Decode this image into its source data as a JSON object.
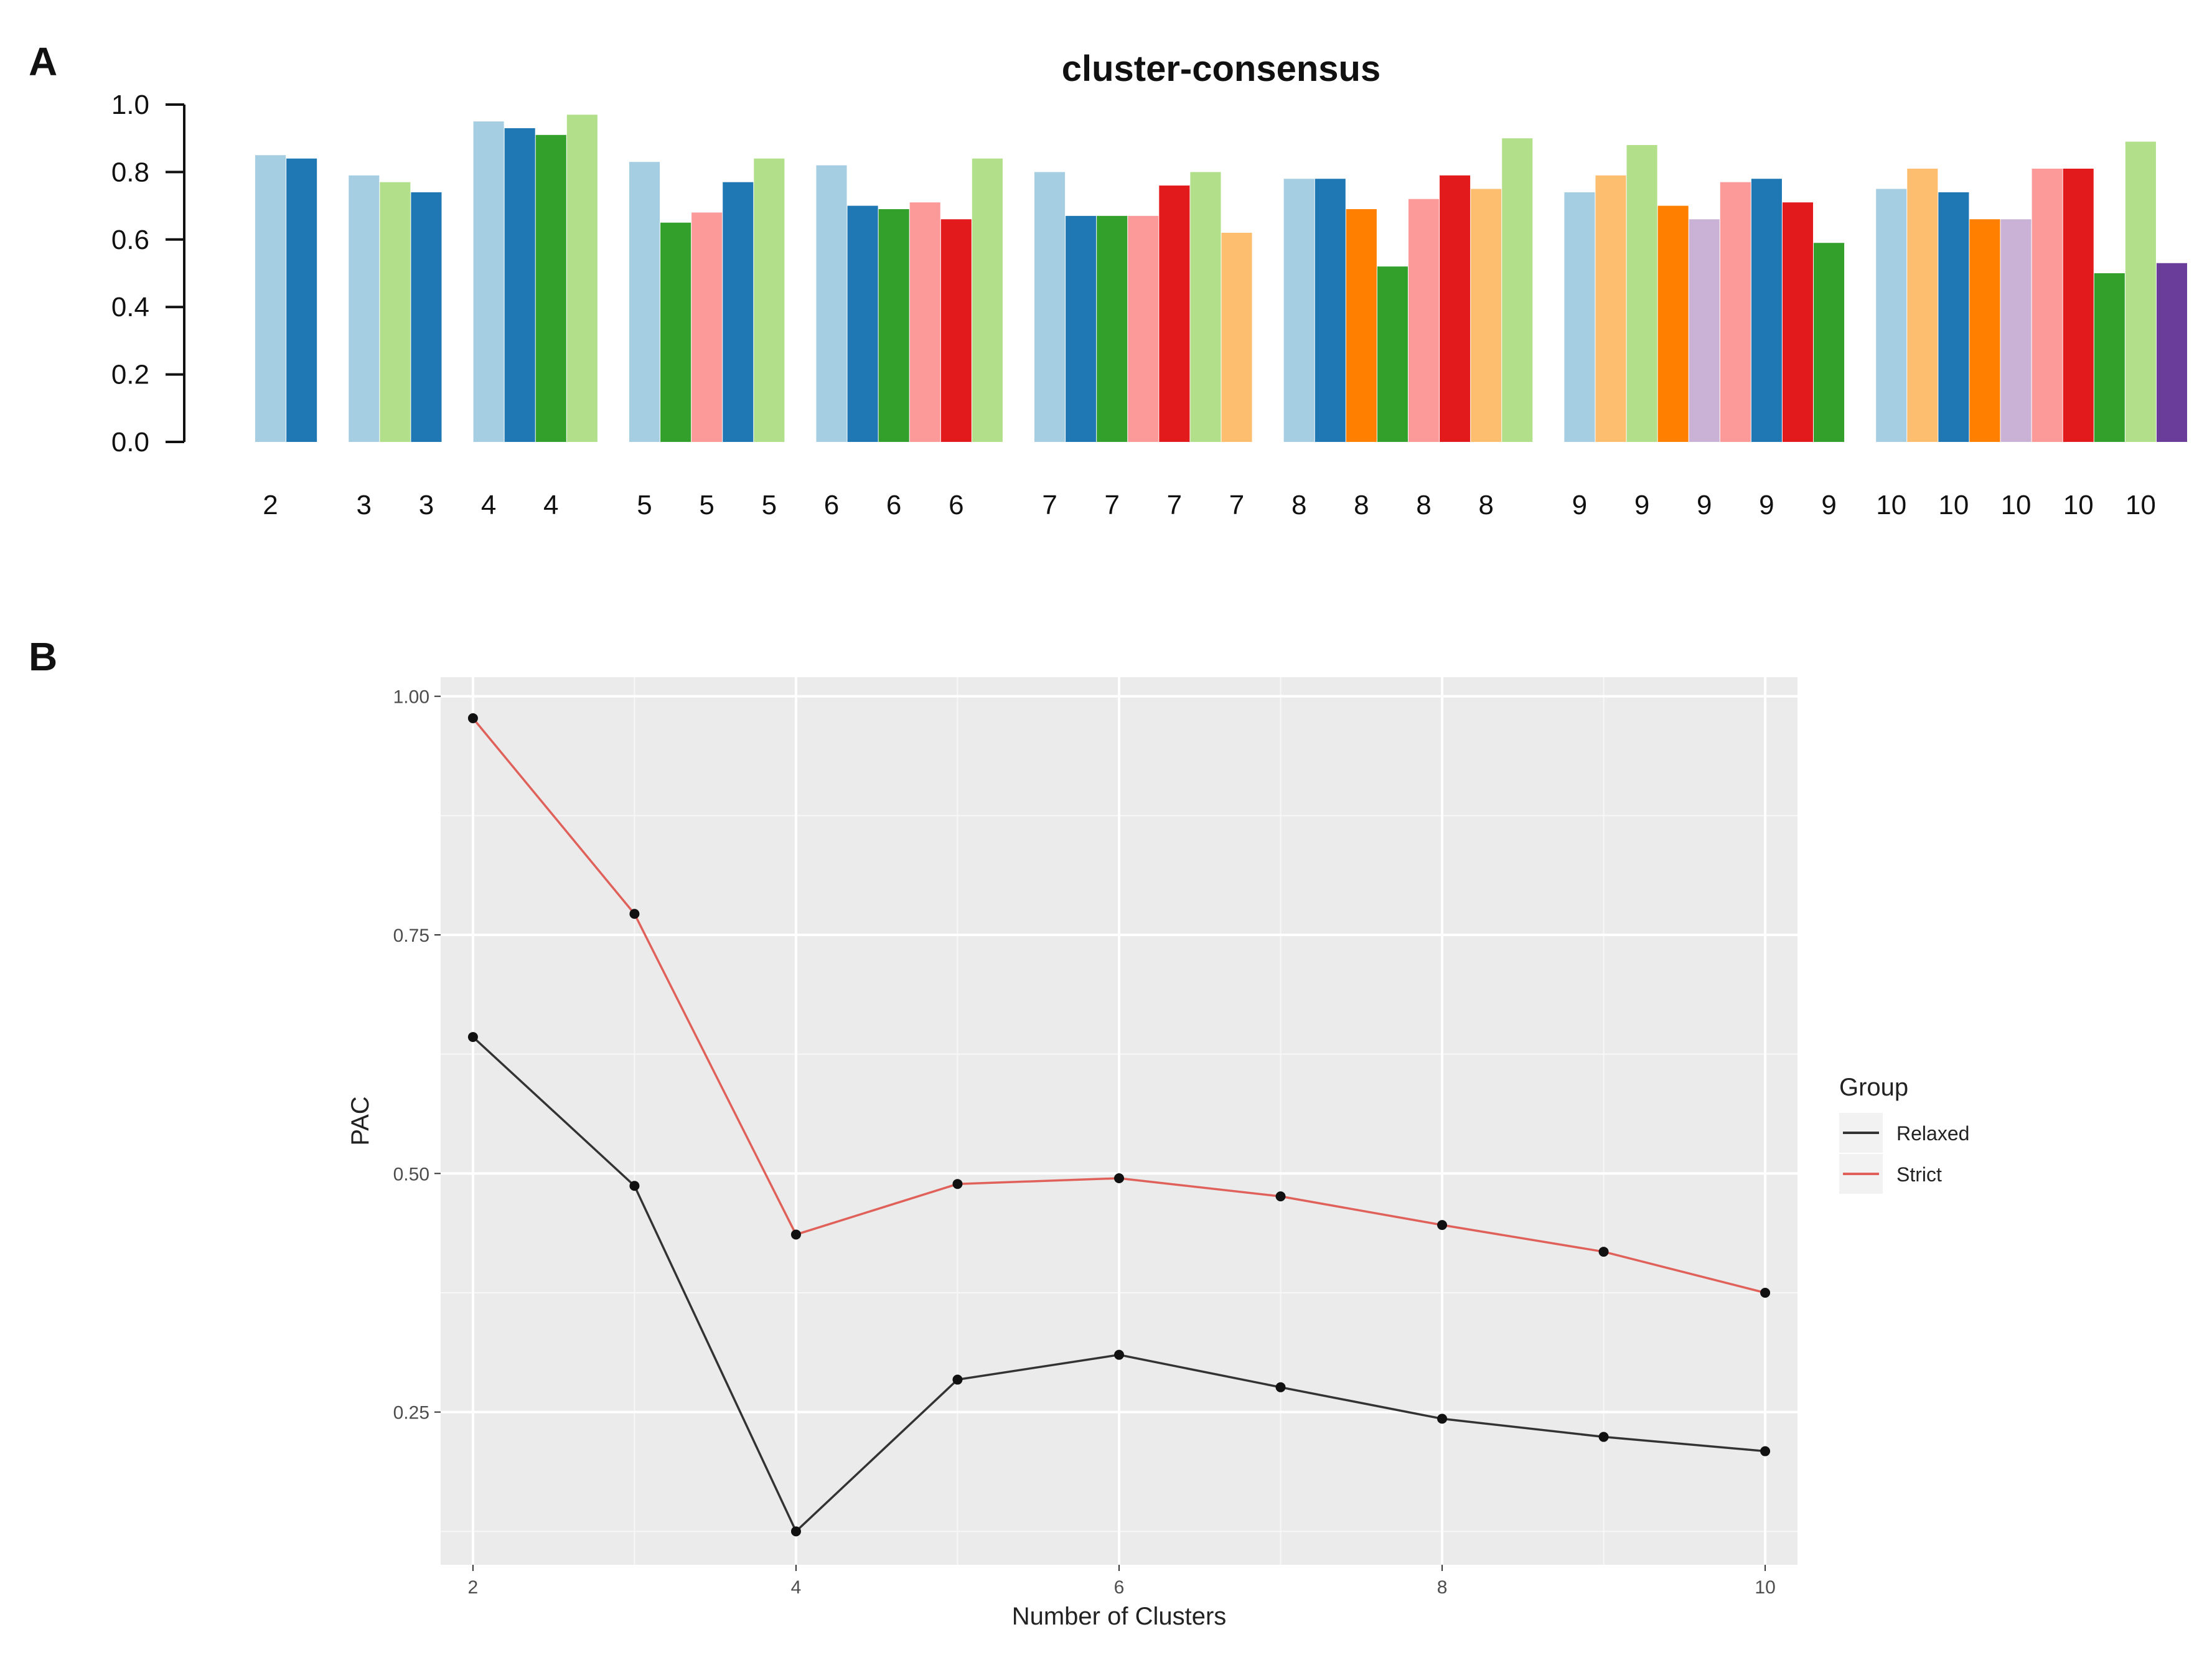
{
  "panel_letters": {
    "a": "A",
    "b": "B"
  },
  "chart_data": [
    {
      "type": "bar",
      "title": "cluster-consensus",
      "ylim": [
        0,
        1
      ],
      "yticks": [
        "0.0",
        "0.2",
        "0.4",
        "0.6",
        "0.8",
        "1.0"
      ],
      "grid": false,
      "palette": [
        "#a6cee3",
        "#1f78b4",
        "#b2df8a",
        "#33a02c",
        "#fb9a99",
        "#e31a1c",
        "#fdbf6f",
        "#ff7f00",
        "#cab2d6",
        "#6a3d9a"
      ],
      "groups": [
        {
          "k": "2",
          "bars": [
            {
              "label": "2",
              "value": 0.85,
              "color": "#a6cee3"
            },
            {
              "label": "",
              "value": 0.84,
              "color": "#1f78b4"
            }
          ]
        },
        {
          "k": "3",
          "bars": [
            {
              "label": "3",
              "value": 0.79,
              "color": "#a6cee3"
            },
            {
              "label": "",
              "value": 0.77,
              "color": "#b2df8a"
            },
            {
              "label": "3",
              "value": 0.74,
              "color": "#1f78b4"
            }
          ]
        },
        {
          "k": "4",
          "bars": [
            {
              "label": "4",
              "value": 0.95,
              "color": "#a6cee3"
            },
            {
              "label": "",
              "value": 0.93,
              "color": "#1f78b4"
            },
            {
              "label": "4",
              "value": 0.91,
              "color": "#33a02c"
            },
            {
              "label": "",
              "value": 0.97,
              "color": "#b2df8a"
            }
          ]
        },
        {
          "k": "5",
          "bars": [
            {
              "label": "5",
              "value": 0.83,
              "color": "#a6cee3"
            },
            {
              "label": "",
              "value": 0.65,
              "color": "#33a02c"
            },
            {
              "label": "5",
              "value": 0.68,
              "color": "#fb9a99"
            },
            {
              "label": "",
              "value": 0.77,
              "color": "#1f78b4"
            },
            {
              "label": "5",
              "value": 0.84,
              "color": "#b2df8a"
            }
          ]
        },
        {
          "k": "6",
          "bars": [
            {
              "label": "6",
              "value": 0.82,
              "color": "#a6cee3"
            },
            {
              "label": "",
              "value": 0.7,
              "color": "#1f78b4"
            },
            {
              "label": "6",
              "value": 0.69,
              "color": "#33a02c"
            },
            {
              "label": "",
              "value": 0.71,
              "color": "#fb9a99"
            },
            {
              "label": "6",
              "value": 0.66,
              "color": "#e31a1c"
            },
            {
              "label": "",
              "value": 0.84,
              "color": "#b2df8a"
            }
          ]
        },
        {
          "k": "7",
          "bars": [
            {
              "label": "7",
              "value": 0.8,
              "color": "#a6cee3"
            },
            {
              "label": "",
              "value": 0.67,
              "color": "#1f78b4"
            },
            {
              "label": "7",
              "value": 0.67,
              "color": "#33a02c"
            },
            {
              "label": "",
              "value": 0.67,
              "color": "#fb9a99"
            },
            {
              "label": "7",
              "value": 0.76,
              "color": "#e31a1c"
            },
            {
              "label": "",
              "value": 0.8,
              "color": "#b2df8a"
            },
            {
              "label": "7",
              "value": 0.62,
              "color": "#fdbf6f"
            }
          ]
        },
        {
          "k": "8",
          "bars": [
            {
              "label": "8",
              "value": 0.78,
              "color": "#a6cee3"
            },
            {
              "label": "",
              "value": 0.78,
              "color": "#1f78b4"
            },
            {
              "label": "8",
              "value": 0.69,
              "color": "#ff7f00"
            },
            {
              "label": "",
              "value": 0.52,
              "color": "#33a02c"
            },
            {
              "label": "8",
              "value": 0.72,
              "color": "#fb9a99"
            },
            {
              "label": "",
              "value": 0.79,
              "color": "#e31a1c"
            },
            {
              "label": "8",
              "value": 0.75,
              "color": "#fdbf6f"
            },
            {
              "label": "",
              "value": 0.9,
              "color": "#b2df8a"
            }
          ]
        },
        {
          "k": "9",
          "bars": [
            {
              "label": "9",
              "value": 0.74,
              "color": "#a6cee3"
            },
            {
              "label": "",
              "value": 0.79,
              "color": "#fdbf6f"
            },
            {
              "label": "9",
              "value": 0.88,
              "color": "#b2df8a"
            },
            {
              "label": "",
              "value": 0.7,
              "color": "#ff7f00"
            },
            {
              "label": "9",
              "value": 0.66,
              "color": "#cab2d6"
            },
            {
              "label": "",
              "value": 0.77,
              "color": "#fb9a99"
            },
            {
              "label": "9",
              "value": 0.78,
              "color": "#1f78b4"
            },
            {
              "label": "",
              "value": 0.71,
              "color": "#e31a1c"
            },
            {
              "label": "9",
              "value": 0.59,
              "color": "#33a02c"
            }
          ]
        },
        {
          "k": "10",
          "bars": [
            {
              "label": "10",
              "value": 0.75,
              "color": "#a6cee3"
            },
            {
              "label": "",
              "value": 0.81,
              "color": "#fdbf6f"
            },
            {
              "label": "10",
              "value": 0.74,
              "color": "#1f78b4"
            },
            {
              "label": "",
              "value": 0.66,
              "color": "#ff7f00"
            },
            {
              "label": "10",
              "value": 0.66,
              "color": "#cab2d6"
            },
            {
              "label": "",
              "value": 0.81,
              "color": "#fb9a99"
            },
            {
              "label": "10",
              "value": 0.81,
              "color": "#e31a1c"
            },
            {
              "label": "",
              "value": 0.5,
              "color": "#33a02c"
            },
            {
              "label": "10",
              "value": 0.89,
              "color": "#b2df8a"
            },
            {
              "label": "",
              "value": 0.53,
              "color": "#6a3d9a"
            }
          ]
        }
      ]
    },
    {
      "type": "line",
      "xlabel": "Number of Clusters",
      "ylabel": "PAC",
      "x": [
        2,
        3,
        4,
        5,
        6,
        7,
        8,
        9,
        10
      ],
      "xlim": [
        1.8,
        10.2
      ],
      "ylim": [
        0.09,
        1.02
      ],
      "xticks": [
        2,
        4,
        6,
        8,
        10
      ],
      "yticks": [
        "0.25",
        "0.50",
        "0.75",
        "1.00"
      ],
      "grid": true,
      "panel_background": "#ebebeb",
      "legend": {
        "title": "Group",
        "position": "right"
      },
      "series": [
        {
          "name": "Relaxed",
          "color": "#333333",
          "values": [
            0.643,
            0.487,
            0.125,
            0.284,
            0.31,
            0.276,
            0.243,
            0.224,
            0.209
          ]
        },
        {
          "name": "Strict",
          "color": "#e0605a",
          "values": [
            0.977,
            0.772,
            0.436,
            0.489,
            0.495,
            0.476,
            0.446,
            0.418,
            0.375
          ]
        }
      ]
    }
  ]
}
